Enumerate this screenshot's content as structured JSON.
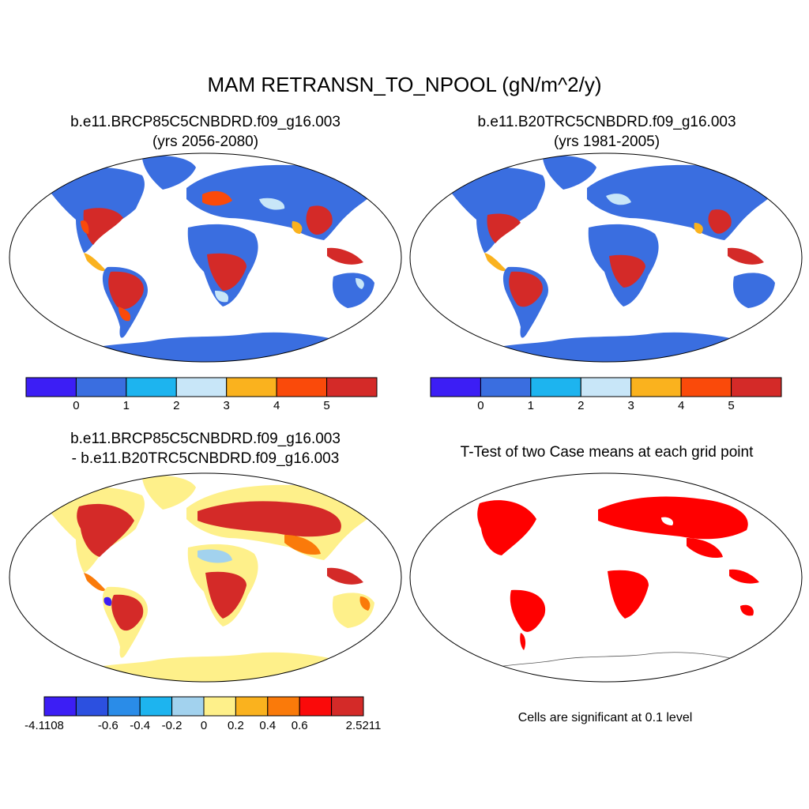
{
  "title": "MAM RETRANSN_TO_NPOOL (gN/m^2/y)",
  "panels": [
    {
      "id": "case1",
      "title_line1": "b.e11.BRCP85C5CNBDRD.f09_g16.003",
      "title_line2": "(yrs 2056-2080)",
      "colorbar": {
        "colors": [
          "#3c1ef5",
          "#3a6ee0",
          "#1db4ef",
          "#c8e6f8",
          "#fab21e",
          "#fa4a0a",
          "#d42a28"
        ],
        "tick_labels": [
          "0",
          "1",
          "2",
          "3",
          "4",
          "5"
        ]
      }
    },
    {
      "id": "case2",
      "title_line1": "b.e11.B20TRC5CNBDRD.f09_g16.003",
      "title_line2": "(yrs 1981-2005)",
      "colorbar": {
        "colors": [
          "#3c1ef5",
          "#3a6ee0",
          "#1db4ef",
          "#c8e6f8",
          "#fab21e",
          "#fa4a0a",
          "#d42a28"
        ],
        "tick_labels": [
          "0",
          "1",
          "2",
          "3",
          "4",
          "5"
        ]
      }
    },
    {
      "id": "difference",
      "title_line1": "b.e11.BRCP85C5CNBDRD.f09_g16.003",
      "title_line2": "- b.e11.B20TRC5CNBDRD.f09_g16.003",
      "colorbar": {
        "colors": [
          "#3c1ef5",
          "#2c50e0",
          "#2a8ce8",
          "#1db4ef",
          "#a2d2ee",
          "#fef08a",
          "#fab21e",
          "#fa7a0a",
          "#fa0a0a",
          "#d42a28"
        ],
        "tick_labels": [
          "-4.1108",
          "",
          "-0.6",
          "-0.4",
          "-0.2",
          "0",
          "0.2",
          "0.4",
          "0.6",
          "",
          "2.5211"
        ]
      }
    },
    {
      "id": "ttest",
      "title_line1": "T-Test of two Case means at each grid point",
      "note": "Cells are significant at 0.1 level",
      "colors": {
        "significant": "#ff0000",
        "background": "#ffffff"
      }
    }
  ]
}
